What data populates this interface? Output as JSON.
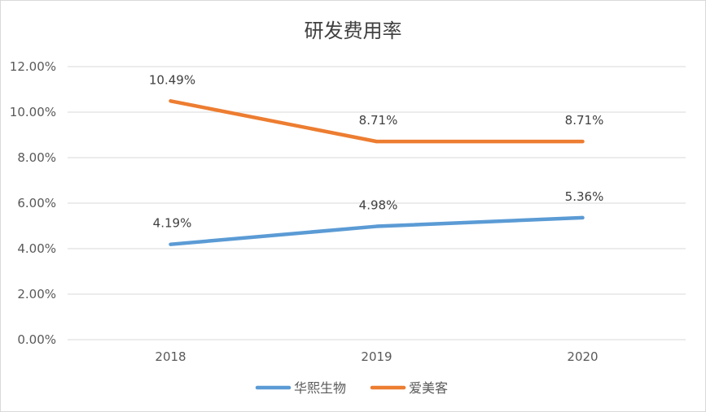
{
  "chart_data": {
    "type": "line",
    "title": "研发费用率",
    "categories": [
      "2018",
      "2019",
      "2020"
    ],
    "series": [
      {
        "name": "华熙生物",
        "values": [
          4.19,
          4.98,
          5.36
        ],
        "labels": [
          "4.19%",
          "4.98%",
          "5.36%"
        ],
        "color": "#5b9bd5"
      },
      {
        "name": "爱美客",
        "values": [
          10.49,
          8.71,
          8.71
        ],
        "labels": [
          "10.49%",
          "8.71%",
          "8.71%"
        ],
        "color": "#ed7d31"
      }
    ],
    "y_ticks": [
      "0.00%",
      "2.00%",
      "4.00%",
      "6.00%",
      "8.00%",
      "10.00%",
      "12.00%"
    ],
    "ylim": [
      0,
      12
    ],
    "y_step": 2,
    "grid": true,
    "legend_position": "bottom"
  }
}
